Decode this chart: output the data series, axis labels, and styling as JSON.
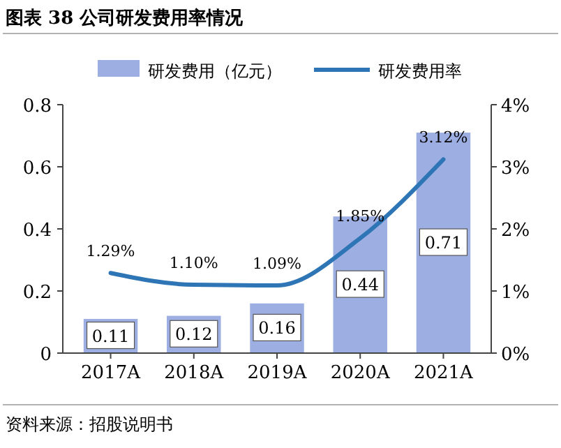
{
  "chart_data": {
    "type": "bar",
    "title": "图表 38 公司研发费用率情况",
    "categories": [
      "2017A",
      "2018A",
      "2019A",
      "2020A",
      "2021A"
    ],
    "series": [
      {
        "name": "研发费用（亿元）",
        "color": "#9dafe2",
        "values": [
          0.11,
          0.12,
          0.16,
          0.44,
          0.71
        ],
        "value_labels": [
          "0.11",
          "0.12",
          "0.16",
          "0.44",
          "0.71"
        ]
      },
      {
        "name": "研发费用率",
        "type": "line",
        "axis": "y2",
        "color": "#2e75b6",
        "values": [
          1.29,
          1.1,
          1.09,
          1.85,
          3.12
        ],
        "value_labels": [
          "1.29%",
          "1.10%",
          "1.09%",
          "1.85%",
          "3.12%"
        ]
      }
    ],
    "ylim": [
      0,
      0.8
    ],
    "yticks": [
      0,
      0.2,
      0.4,
      0.6,
      0.8
    ],
    "y2lim": [
      0,
      4
    ],
    "y2ticks": [
      {
        "value": 0,
        "label": "0%"
      },
      {
        "value": 1,
        "label": "1%"
      },
      {
        "value": 2,
        "label": "2%"
      },
      {
        "value": 3,
        "label": "3%"
      },
      {
        "value": 4,
        "label": "4%"
      }
    ],
    "legend": "top",
    "marker": "none",
    "line_style": "solid",
    "annotations": [
      "资料来源：招股说明书"
    ]
  }
}
